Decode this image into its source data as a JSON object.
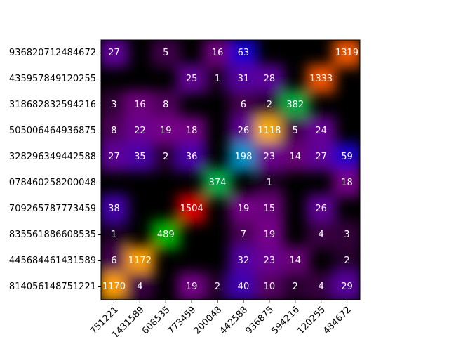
{
  "chart_data": {
    "type": "heatmap",
    "colormap": "nipy_spectral",
    "x_categories": [
      "751221",
      "1431589",
      "608535",
      "773459",
      "200048",
      "442588",
      "936875",
      "594216",
      "120255",
      "484672"
    ],
    "y_categories": [
      "936820712484672",
      "435957849120255",
      "318682832594216",
      "505006464936875",
      "328296349442588",
      "078460258200048",
      "709265787773459",
      "835561886608535",
      "445684461431589",
      "814056148751221"
    ],
    "values": [
      [
        27,
        null,
        5,
        null,
        16,
        63,
        null,
        null,
        null,
        1319
      ],
      [
        null,
        null,
        null,
        25,
        1,
        31,
        28,
        null,
        1333,
        null
      ],
      [
        3,
        16,
        8,
        null,
        null,
        6,
        2,
        382,
        null,
        null
      ],
      [
        8,
        22,
        19,
        18,
        null,
        26,
        1118,
        5,
        24,
        null
      ],
      [
        27,
        35,
        2,
        36,
        null,
        198,
        23,
        14,
        27,
        59
      ],
      [
        null,
        null,
        null,
        null,
        374,
        null,
        1,
        null,
        null,
        18
      ],
      [
        38,
        null,
        null,
        1504,
        null,
        19,
        15,
        null,
        26,
        null
      ],
      [
        1,
        null,
        489,
        null,
        null,
        7,
        19,
        null,
        4,
        3
      ],
      [
        6,
        1172,
        null,
        null,
        null,
        32,
        23,
        14,
        null,
        2
      ],
      [
        1170,
        4,
        null,
        19,
        2,
        40,
        10,
        2,
        4,
        29
      ]
    ]
  }
}
